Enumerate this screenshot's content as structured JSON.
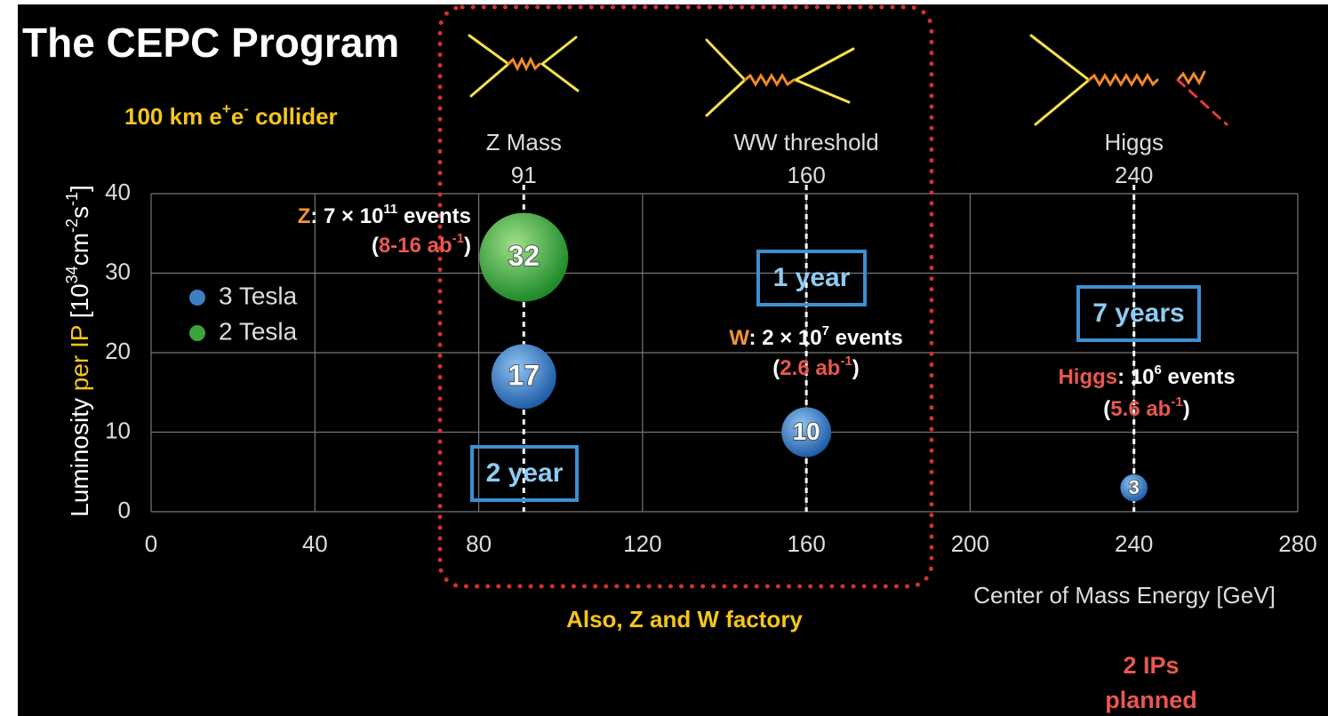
{
  "title": "The CEPC Program",
  "subtitle": [
    "100 km e",
    "+",
    "e",
    "-",
    " collider"
  ],
  "chart_data": {
    "type": "scatter",
    "xlabel": "Center of Mass Energy [GeV]",
    "ylabel": [
      "Luminosity ",
      "per IP",
      "  [10",
      "34",
      "cm",
      "-2",
      "s",
      "-1",
      "]"
    ],
    "xlim": [
      0,
      280
    ],
    "xticks": [
      0,
      40,
      80,
      120,
      160,
      200,
      240,
      280
    ],
    "ylim": [
      0,
      40
    ],
    "yticks": [
      0,
      10,
      20,
      30,
      40
    ],
    "grid": true,
    "series": [
      {
        "name": "3 Tesla",
        "color": "#3d7fc4",
        "x": [
          91,
          160,
          240
        ],
        "values": [
          17,
          10,
          3
        ]
      },
      {
        "name": "2 Tesla",
        "color": "#3aa43a",
        "x": [
          91
        ],
        "values": [
          32
        ]
      }
    ],
    "markers": [
      {
        "label": "Z Mass",
        "x": 91
      },
      {
        "label": "WW threshold",
        "x": 160
      },
      {
        "label": "Higgs",
        "x": 240
      }
    ],
    "run_times": [
      "2 year",
      "1 year",
      "7 years"
    ],
    "notes": [
      [
        [
          "Z",
          ": 7 × 10",
          "11",
          " events"
        ],
        [
          "(",
          "8-16 ab",
          "-1",
          ")"
        ]
      ],
      [
        [
          "W",
          ": 2 × 10",
          "7",
          " events"
        ],
        [
          "(",
          "2.6 ab",
          "-1",
          ")"
        ]
      ],
      [
        [
          "Higgs",
          ": 10",
          "6",
          " events"
        ],
        [
          "(",
          "5.6 ab",
          "-1",
          ")"
        ]
      ]
    ]
  },
  "footer": {
    "factory": "Also, Z and W factory",
    "ips": [
      "2 IPs",
      "planned"
    ]
  }
}
